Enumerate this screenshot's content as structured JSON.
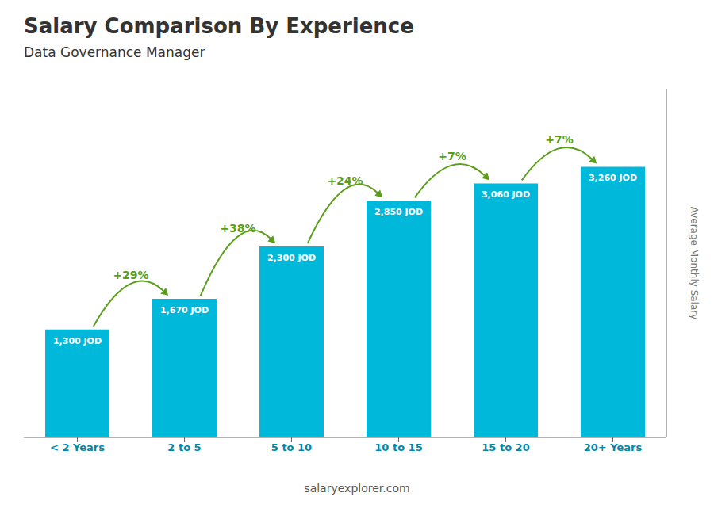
{
  "chart_data": {
    "type": "bar",
    "title": "Salary Comparison By Experience",
    "subtitle": "Data Governance Manager",
    "categories": [
      "< 2 Years",
      "2 to 5",
      "5 to 10",
      "10 to 15",
      "15 to 20",
      "20+ Years"
    ],
    "values": [
      1300,
      1670,
      2300,
      2850,
      3060,
      3260
    ],
    "value_labels": [
      "1,300 JOD",
      "1,670 JOD",
      "2,300 JOD",
      "2,850 JOD",
      "3,060 JOD",
      "3,260 JOD"
    ],
    "data_labels": true,
    "annotations": [
      "+29%",
      "+38%",
      "+24%",
      "+7%",
      "+7%"
    ],
    "ylabel": "Average Monthly Salary",
    "watermark": "salaryexplorer.com",
    "color": "#00b8d9",
    "ylim": [
      0,
      4200
    ],
    "tick_labels": "x",
    "grid": false
  }
}
